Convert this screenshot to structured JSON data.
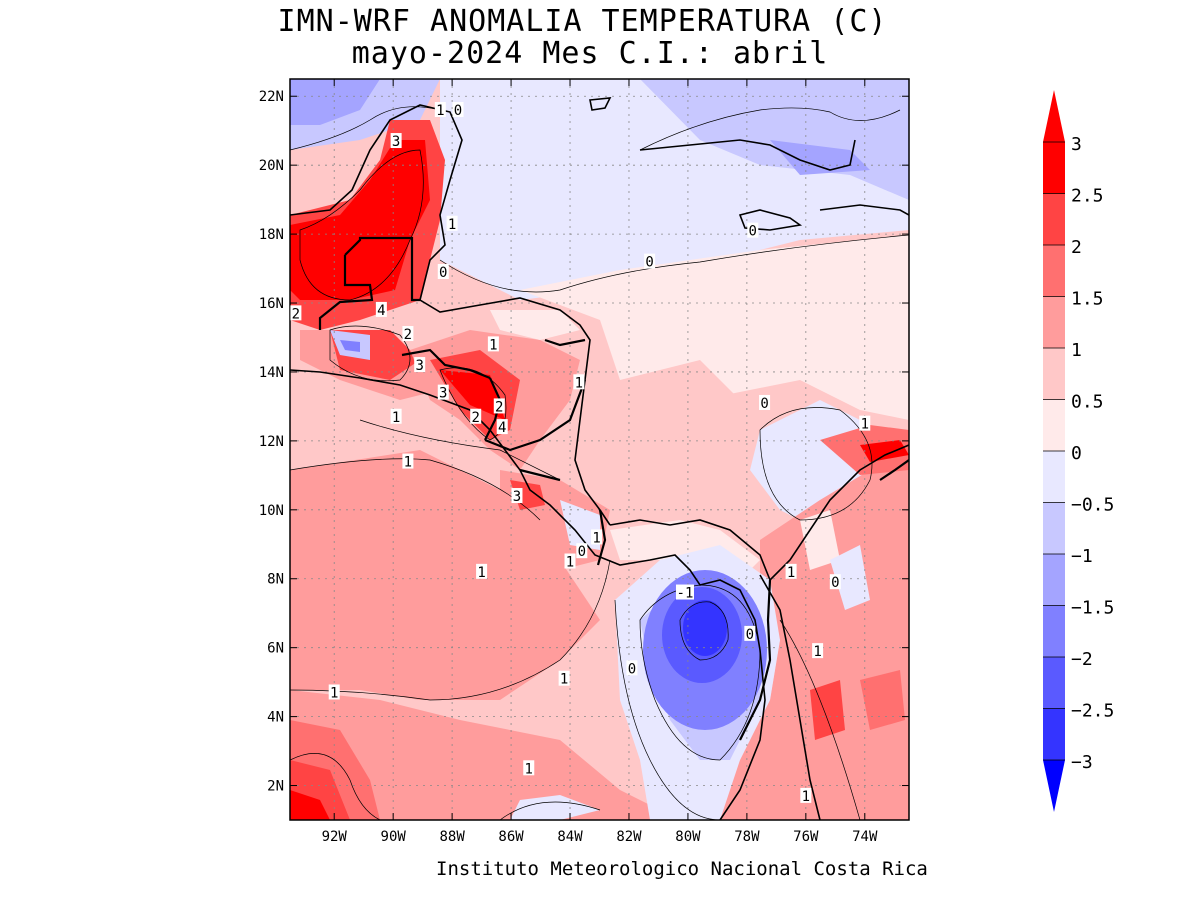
{
  "title": {
    "line1": "IMN-WRF  ANOMALIA TEMPERATURA (C)",
    "line2": "mayo-2024 Mes C.I.: abril"
  },
  "credit": "Instituto Meteorologico Nacional Costa Rica",
  "map": {
    "lon_range": [
      -93.5,
      -72.5
    ],
    "lat_range": [
      1,
      22.5
    ],
    "lon_ticks": [
      {
        "value": -92,
        "label": "92W"
      },
      {
        "value": -90,
        "label": "90W"
      },
      {
        "value": -88,
        "label": "88W"
      },
      {
        "value": -86,
        "label": "86W"
      },
      {
        "value": -84,
        "label": "84W"
      },
      {
        "value": -82,
        "label": "82W"
      },
      {
        "value": -80,
        "label": "80W"
      },
      {
        "value": -78,
        "label": "78W"
      },
      {
        "value": -76,
        "label": "76W"
      },
      {
        "value": -74,
        "label": "74W"
      }
    ],
    "lat_ticks": [
      {
        "value": 2,
        "label": "2N"
      },
      {
        "value": 4,
        "label": "4N"
      },
      {
        "value": 6,
        "label": "6N"
      },
      {
        "value": 8,
        "label": "8N"
      },
      {
        "value": 10,
        "label": "10N"
      },
      {
        "value": 12,
        "label": "12N"
      },
      {
        "value": 14,
        "label": "14N"
      },
      {
        "value": 16,
        "label": "16N"
      },
      {
        "value": 18,
        "label": "18N"
      },
      {
        "value": 20,
        "label": "20N"
      },
      {
        "value": 22,
        "label": "22N"
      }
    ],
    "grid": true,
    "contour_labels": [
      {
        "text": "1",
        "lon": -88.4,
        "lat": 21.6
      },
      {
        "text": "0",
        "lon": -87.8,
        "lat": 21.6
      },
      {
        "text": "3",
        "lon": -89.9,
        "lat": 20.7
      },
      {
        "text": "1",
        "lon": -88.0,
        "lat": 18.3
      },
      {
        "text": "0",
        "lon": -88.3,
        "lat": 16.9
      },
      {
        "text": "0",
        "lon": -77.8,
        "lat": 18.1
      },
      {
        "text": "0",
        "lon": -81.3,
        "lat": 17.2
      },
      {
        "text": "2",
        "lon": -93.3,
        "lat": 15.7
      },
      {
        "text": "4",
        "lon": -90.4,
        "lat": 15.8
      },
      {
        "text": "2",
        "lon": -89.5,
        "lat": 15.1
      },
      {
        "text": "1",
        "lon": -86.6,
        "lat": 14.8
      },
      {
        "text": "3",
        "lon": -89.1,
        "lat": 14.2
      },
      {
        "text": "1",
        "lon": -83.7,
        "lat": 13.7
      },
      {
        "text": "3",
        "lon": -88.3,
        "lat": 13.4
      },
      {
        "text": "1",
        "lon": -89.9,
        "lat": 12.7
      },
      {
        "text": "2",
        "lon": -87.2,
        "lat": 12.7
      },
      {
        "text": "2",
        "lon": -86.4,
        "lat": 13.0
      },
      {
        "text": "4",
        "lon": -86.3,
        "lat": 12.4
      },
      {
        "text": "0",
        "lon": -77.4,
        "lat": 13.1
      },
      {
        "text": "1",
        "lon": -74.0,
        "lat": 12.5
      },
      {
        "text": "1",
        "lon": -89.5,
        "lat": 11.4
      },
      {
        "text": "3",
        "lon": -85.8,
        "lat": 10.4
      },
      {
        "text": "1",
        "lon": -83.1,
        "lat": 9.2
      },
      {
        "text": "0",
        "lon": -83.6,
        "lat": 8.8
      },
      {
        "text": "1",
        "lon": -84.0,
        "lat": 8.5
      },
      {
        "text": "1",
        "lon": -87.0,
        "lat": 8.2
      },
      {
        "text": "-1",
        "lon": -80.1,
        "lat": 7.6
      },
      {
        "text": "1",
        "lon": -76.5,
        "lat": 8.2
      },
      {
        "text": "0",
        "lon": -77.9,
        "lat": 6.4
      },
      {
        "text": "0",
        "lon": -75.0,
        "lat": 7.9
      },
      {
        "text": "1",
        "lon": -75.6,
        "lat": 5.9
      },
      {
        "text": "0",
        "lon": -81.9,
        "lat": 5.4
      },
      {
        "text": "1",
        "lon": -84.2,
        "lat": 5.1
      },
      {
        "text": "1",
        "lon": -92.0,
        "lat": 4.7
      },
      {
        "text": "1",
        "lon": -85.4,
        "lat": 2.5
      },
      {
        "text": "1",
        "lon": -76.0,
        "lat": 1.7
      }
    ]
  },
  "colorbar": {
    "levels": [
      {
        "label": "3",
        "value": 3
      },
      {
        "label": "2.5",
        "value": 2.5
      },
      {
        "label": "2",
        "value": 2
      },
      {
        "label": "1.5",
        "value": 1.5
      },
      {
        "label": "1",
        "value": 1
      },
      {
        "label": "0.5",
        "value": 0.5
      },
      {
        "label": "0",
        "value": 0
      },
      {
        "label": "−0.5",
        "value": -0.5
      },
      {
        "label": "−1",
        "value": -1
      },
      {
        "label": "−1.5",
        "value": -1.5
      },
      {
        "label": "−2",
        "value": -2
      },
      {
        "label": "−2.5",
        "value": -2.5
      },
      {
        "label": "−3",
        "value": -3
      }
    ],
    "colors": [
      "#ff0000",
      "#ff4444",
      "#ff7070",
      "#ff9c9c",
      "#ffc8c8",
      "#ffeaea",
      "#e8e8ff",
      "#c8c8ff",
      "#a4a4ff",
      "#8080ff",
      "#5a5aff",
      "#3434ff"
    ],
    "top_arrow_color": "#ff0000",
    "bottom_arrow_color": "#0000ff"
  }
}
